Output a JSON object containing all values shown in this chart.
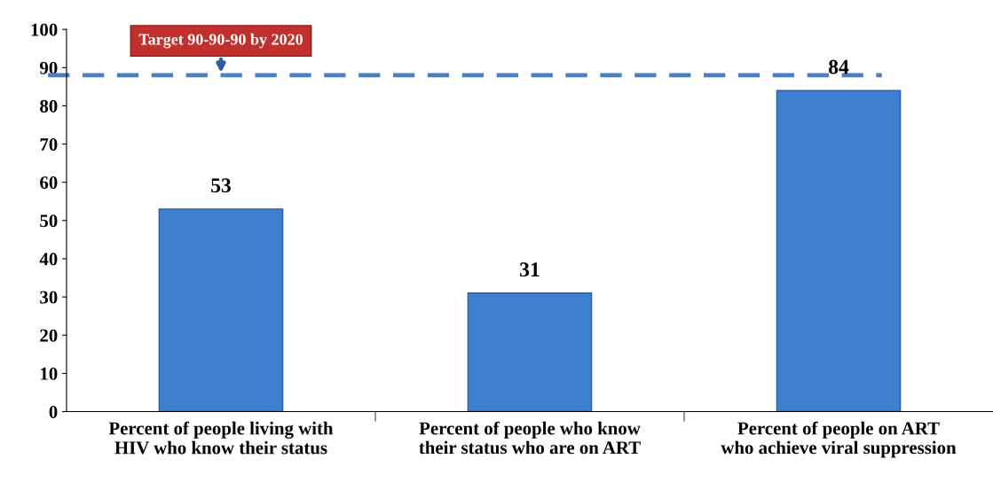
{
  "chart_data": {
    "type": "bar",
    "categories": [
      "Percent of people living with\nHIV who know their status",
      "Percent of people who know\ntheir status who are on ART",
      "Percent of people on ART\nwho achieve viral suppression"
    ],
    "values": [
      53,
      31,
      84
    ],
    "color": "#3f7fd0",
    "ylim": [
      0,
      100
    ],
    "yticks": [
      0,
      10,
      20,
      30,
      40,
      50,
      60,
      70,
      80,
      90,
      100
    ],
    "grid": false,
    "data_labels": true,
    "ref_lines": [
      {
        "axis": "y",
        "value": 88,
        "label": "Target 90-90-90 by 2020",
        "color": "#4a7fc0",
        "line_style": "dashed"
      }
    ]
  }
}
